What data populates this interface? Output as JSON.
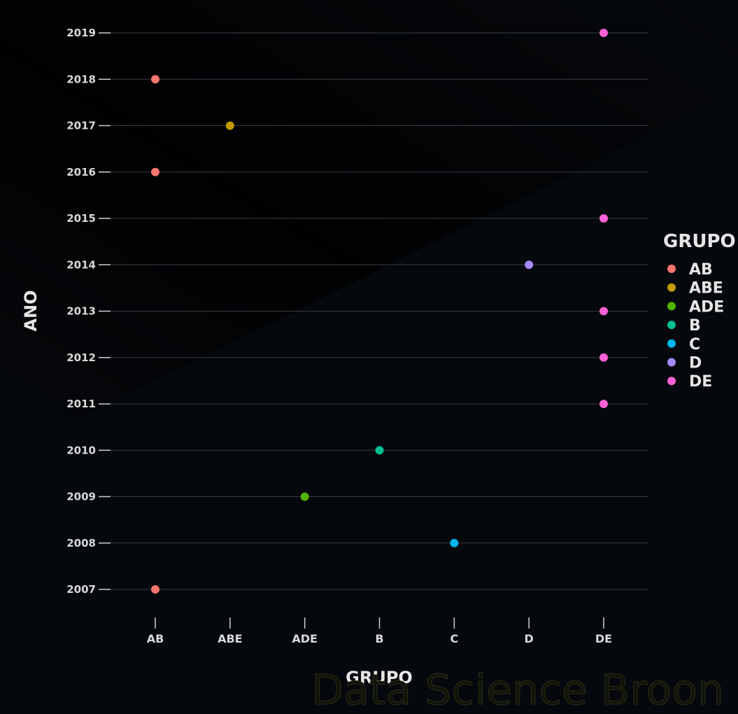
{
  "chart_data": {
    "type": "scatter",
    "xlabel": "GRUPO",
    "ylabel": "ANO",
    "categories": [
      "AB",
      "ABE",
      "ADE",
      "B",
      "C",
      "D",
      "DE"
    ],
    "y_ticks": [
      "2007",
      "2008",
      "2009",
      "2010",
      "2011",
      "2012",
      "2013",
      "2014",
      "2015",
      "2016",
      "2017",
      "2018",
      "2019"
    ],
    "ylim": [
      2007,
      2019
    ],
    "grid": "horizontal",
    "legend": {
      "title": "GRUPO",
      "position": "right",
      "entries": [
        {
          "label": "AB",
          "color": "#f8766d"
        },
        {
          "label": "ABE",
          "color": "#c49a00"
        },
        {
          "label": "ADE",
          "color": "#53b400"
        },
        {
          "label": "B",
          "color": "#00c094"
        },
        {
          "label": "C",
          "color": "#00b6eb"
        },
        {
          "label": "D",
          "color": "#a58aff"
        },
        {
          "label": "DE",
          "color": "#fb61d7"
        }
      ]
    },
    "points": [
      {
        "x": "DE",
        "y": 2019
      },
      {
        "x": "AB",
        "y": 2018
      },
      {
        "x": "ABE",
        "y": 2017
      },
      {
        "x": "AB",
        "y": 2016
      },
      {
        "x": "DE",
        "y": 2015
      },
      {
        "x": "D",
        "y": 2014
      },
      {
        "x": "DE",
        "y": 2013
      },
      {
        "x": "DE",
        "y": 2012
      },
      {
        "x": "DE",
        "y": 2011
      },
      {
        "x": "B",
        "y": 2010
      },
      {
        "x": "ADE",
        "y": 2009
      },
      {
        "x": "C",
        "y": 2008
      },
      {
        "x": "AB",
        "y": 2007
      }
    ]
  },
  "watermark": "Data Science Broon"
}
